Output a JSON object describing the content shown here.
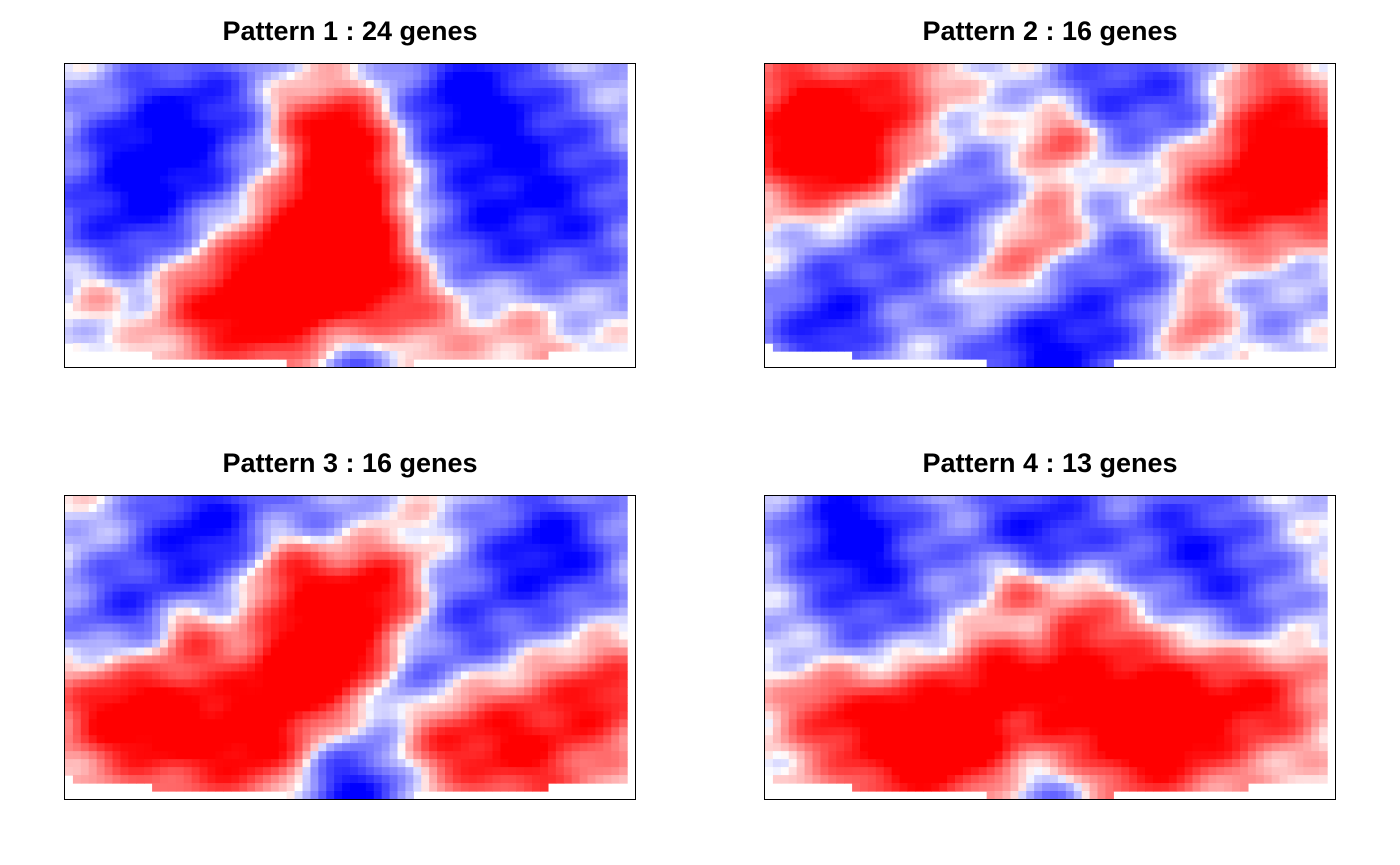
{
  "chart_data": [
    {
      "type": "heatmap",
      "title": "Pattern 1 : 24 genes",
      "colorscale": {
        "low": "#0000ff",
        "mid": "#ffffff",
        "high": "#ff0000"
      },
      "hotspots": [
        {
          "x": 0.5,
          "y": 0.22,
          "v": 0.9,
          "r": 0.05
        },
        {
          "x": 0.49,
          "y": 0.4,
          "v": 1.0,
          "r": 0.06
        },
        {
          "x": 0.48,
          "y": 0.58,
          "v": 1.0,
          "r": 0.08
        },
        {
          "x": 0.45,
          "y": 0.75,
          "v": 1.0,
          "r": 0.1
        },
        {
          "x": 0.35,
          "y": 0.8,
          "v": 0.9,
          "r": 0.09
        },
        {
          "x": 0.6,
          "y": 0.82,
          "v": 0.6,
          "r": 0.07
        },
        {
          "x": 0.41,
          "y": 0.18,
          "v": 0.6,
          "r": 0.05
        },
        {
          "x": 0.22,
          "y": 0.78,
          "v": 0.5,
          "r": 0.06
        },
        {
          "x": 0.05,
          "y": 0.75,
          "v": 0.4,
          "r": 0.04
        },
        {
          "x": 0.8,
          "y": 0.88,
          "v": 0.3,
          "r": 0.06
        },
        {
          "x": 0.15,
          "y": 0.3,
          "v": -0.7,
          "r": 0.1
        },
        {
          "x": 0.8,
          "y": 0.3,
          "v": -0.7,
          "r": 0.12
        },
        {
          "x": 0.25,
          "y": 0.15,
          "v": -0.6,
          "r": 0.1
        },
        {
          "x": 0.9,
          "y": 0.55,
          "v": -0.5,
          "r": 0.1
        },
        {
          "x": 0.1,
          "y": 0.55,
          "v": -0.6,
          "r": 0.1
        },
        {
          "x": 0.7,
          "y": 0.1,
          "v": -0.8,
          "r": 0.08
        },
        {
          "x": 0.5,
          "y": 0.98,
          "v": -1.0,
          "r": 0.08
        },
        {
          "x": 0.7,
          "y": 0.6,
          "v": -0.5,
          "r": 0.08
        }
      ]
    },
    {
      "type": "heatmap",
      "title": "Pattern 2 : 16 genes",
      "colorscale": {
        "low": "#0000ff",
        "mid": "#ffffff",
        "high": "#ff0000"
      },
      "hotspots": [
        {
          "x": 0.08,
          "y": 0.2,
          "v": 1.0,
          "r": 0.09
        },
        {
          "x": 0.15,
          "y": 0.3,
          "v": 1.0,
          "r": 0.08
        },
        {
          "x": 0.82,
          "y": 0.4,
          "v": 1.0,
          "r": 0.11
        },
        {
          "x": 0.95,
          "y": 0.33,
          "v": 1.0,
          "r": 0.07
        },
        {
          "x": 0.52,
          "y": 0.25,
          "v": 0.8,
          "r": 0.04
        },
        {
          "x": 0.5,
          "y": 0.55,
          "v": 0.6,
          "r": 0.05
        },
        {
          "x": 0.42,
          "y": 0.7,
          "v": 0.6,
          "r": 0.05
        },
        {
          "x": 0.25,
          "y": 0.07,
          "v": 0.5,
          "r": 0.04
        },
        {
          "x": 0.88,
          "y": 0.1,
          "v": 0.5,
          "r": 0.05
        },
        {
          "x": 0.75,
          "y": 0.85,
          "v": 0.6,
          "r": 0.04
        },
        {
          "x": 0.62,
          "y": 0.08,
          "v": -0.7,
          "r": 0.09
        },
        {
          "x": 0.75,
          "y": 0.18,
          "v": -0.6,
          "r": 0.07
        },
        {
          "x": 0.2,
          "y": 0.6,
          "v": -0.6,
          "r": 0.1
        },
        {
          "x": 0.35,
          "y": 0.45,
          "v": -0.5,
          "r": 0.07
        },
        {
          "x": 0.65,
          "y": 0.65,
          "v": -0.6,
          "r": 0.09
        },
        {
          "x": 0.5,
          "y": 0.97,
          "v": -1.0,
          "r": 0.1
        },
        {
          "x": 0.1,
          "y": 0.88,
          "v": -0.8,
          "r": 0.07
        },
        {
          "x": 0.9,
          "y": 0.75,
          "v": -0.4,
          "r": 0.07
        }
      ]
    },
    {
      "type": "heatmap",
      "title": "Pattern 3 : 16 genes",
      "colorscale": {
        "low": "#0000ff",
        "mid": "#ffffff",
        "high": "#ff0000"
      },
      "hotspots": [
        {
          "x": 0.4,
          "y": 0.25,
          "v": 1.0,
          "r": 0.06
        },
        {
          "x": 0.55,
          "y": 0.3,
          "v": 0.9,
          "r": 0.06
        },
        {
          "x": 0.48,
          "y": 0.5,
          "v": 1.0,
          "r": 0.07
        },
        {
          "x": 0.4,
          "y": 0.6,
          "v": 0.9,
          "r": 0.07
        },
        {
          "x": 0.2,
          "y": 0.75,
          "v": 1.0,
          "r": 0.09
        },
        {
          "x": 0.08,
          "y": 0.7,
          "v": 0.8,
          "r": 0.07
        },
        {
          "x": 0.35,
          "y": 0.85,
          "v": 0.8,
          "r": 0.07
        },
        {
          "x": 0.8,
          "y": 0.82,
          "v": 1.0,
          "r": 0.09
        },
        {
          "x": 0.95,
          "y": 0.65,
          "v": 0.8,
          "r": 0.06
        },
        {
          "x": 0.65,
          "y": 0.8,
          "v": 0.6,
          "r": 0.06
        },
        {
          "x": 0.22,
          "y": 0.45,
          "v": 0.6,
          "r": 0.04
        },
        {
          "x": 0.25,
          "y": 0.12,
          "v": -1.0,
          "r": 0.09
        },
        {
          "x": 0.85,
          "y": 0.18,
          "v": -1.0,
          "r": 0.09
        },
        {
          "x": 0.1,
          "y": 0.4,
          "v": -0.7,
          "r": 0.08
        },
        {
          "x": 0.7,
          "y": 0.45,
          "v": -0.6,
          "r": 0.08
        },
        {
          "x": 0.6,
          "y": 0.65,
          "v": -0.5,
          "r": 0.05
        },
        {
          "x": 0.5,
          "y": 0.98,
          "v": -1.0,
          "r": 0.08
        },
        {
          "x": 0.45,
          "y": 0.1,
          "v": -0.5,
          "r": 0.06
        }
      ]
    },
    {
      "type": "heatmap",
      "title": "Pattern 4 : 13 genes",
      "colorscale": {
        "low": "#0000ff",
        "mid": "#ffffff",
        "high": "#ff0000"
      },
      "hotspots": [
        {
          "x": 0.22,
          "y": 0.78,
          "v": 1.0,
          "r": 0.09
        },
        {
          "x": 0.35,
          "y": 0.8,
          "v": 1.0,
          "r": 0.09
        },
        {
          "x": 0.6,
          "y": 0.78,
          "v": 1.0,
          "r": 0.1
        },
        {
          "x": 0.72,
          "y": 0.72,
          "v": 1.0,
          "r": 0.09
        },
        {
          "x": 0.45,
          "y": 0.6,
          "v": 0.8,
          "r": 0.07
        },
        {
          "x": 0.55,
          "y": 0.4,
          "v": 0.7,
          "r": 0.06
        },
        {
          "x": 0.44,
          "y": 0.3,
          "v": 0.7,
          "r": 0.04
        },
        {
          "x": 0.88,
          "y": 0.65,
          "v": 0.8,
          "r": 0.07
        },
        {
          "x": 0.1,
          "y": 0.7,
          "v": 0.5,
          "r": 0.05
        },
        {
          "x": 0.15,
          "y": 0.1,
          "v": -1.0,
          "r": 0.08
        },
        {
          "x": 0.48,
          "y": 0.12,
          "v": -0.9,
          "r": 0.09
        },
        {
          "x": 0.75,
          "y": 0.15,
          "v": -0.8,
          "r": 0.09
        },
        {
          "x": 0.2,
          "y": 0.4,
          "v": -0.6,
          "r": 0.1
        },
        {
          "x": 0.85,
          "y": 0.4,
          "v": -0.5,
          "r": 0.08
        },
        {
          "x": 0.48,
          "y": 0.45,
          "v": -0.6,
          "r": 0.03
        },
        {
          "x": 0.5,
          "y": 0.98,
          "v": -0.8,
          "r": 0.08
        },
        {
          "x": 0.45,
          "y": 0.72,
          "v": -0.4,
          "r": 0.03
        }
      ]
    }
  ]
}
